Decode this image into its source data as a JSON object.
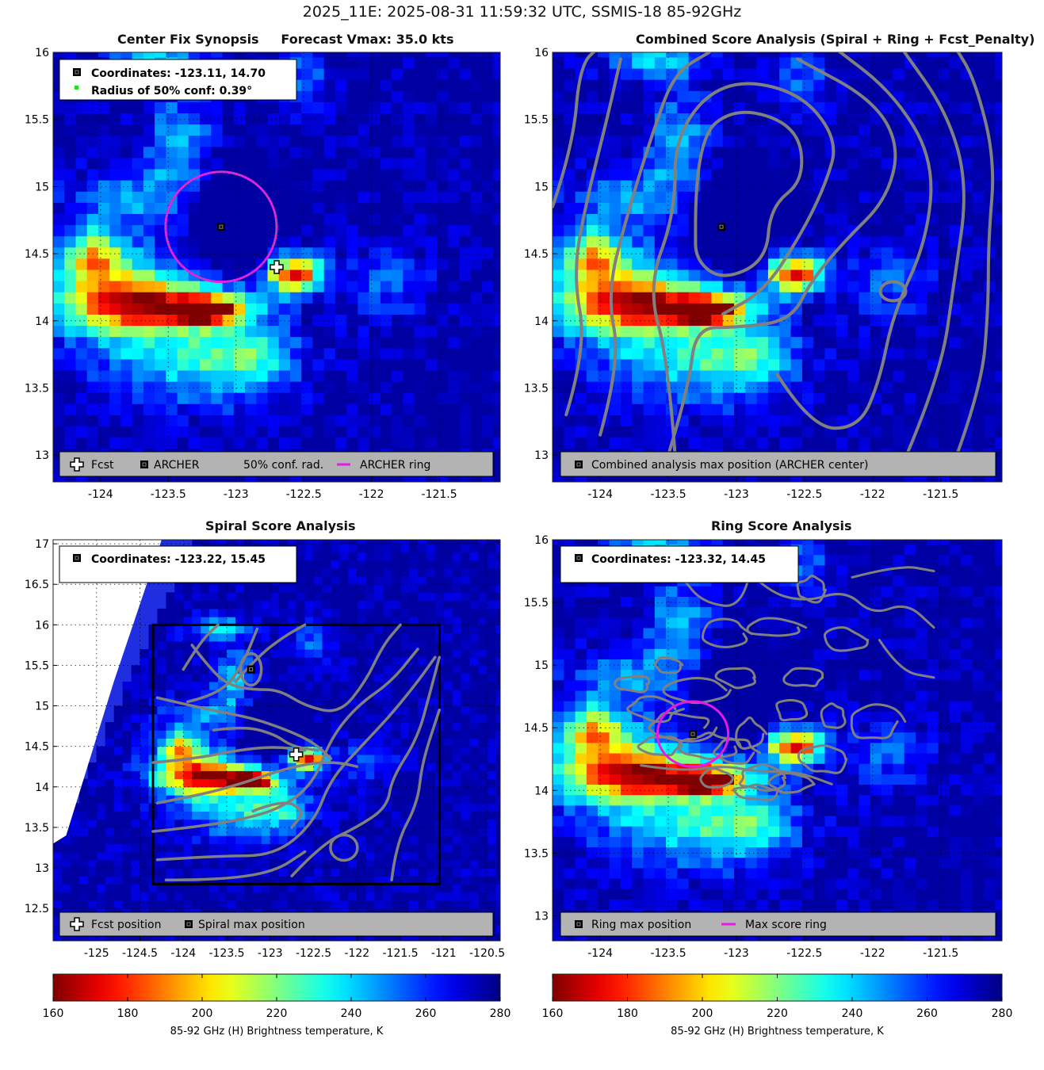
{
  "figure_title": "2025_11E: 2025-08-31 11:59:32 UTC, SSMIS-18 85-92GHz",
  "colors": {
    "fcst_marker": "#ffffff",
    "archer_marker": "#000000",
    "ring": "#e619e6",
    "contour": "#808080",
    "legend_bg": "#b3b3b3",
    "conf_marker": "#22dd22"
  },
  "colorbar": {
    "label": "85-92 GHz (H) Brightness temperature, K",
    "ticks": [
      "160",
      "180",
      "200",
      "220",
      "240",
      "260",
      "280"
    ],
    "range": [
      160,
      280
    ],
    "colormap": "jet_reversed"
  },
  "chart_data": [
    {
      "type": "heatmap",
      "panel": "center-fix-synopsis",
      "title": "Center Fix Synopsis     Forecast Vmax: 35.0 kts",
      "xlim": [
        -124.35,
        -121.05
      ],
      "ylim": [
        12.8,
        16.0
      ],
      "xticks": [
        "-124",
        "-123.5",
        "-123",
        "-122.5",
        "-122",
        "-121.5"
      ],
      "yticks": [
        "16",
        "15.5",
        "15",
        "14.5",
        "14",
        "13.5",
        "13"
      ],
      "info_lines": [
        "Coordinates: -123.11, 14.70",
        "Radius of 50% conf: 0.39°"
      ],
      "legend": [
        "Fcst",
        "ARCHER",
        "50% conf. rad.",
        "ARCHER ring"
      ],
      "archer_center": [
        -123.11,
        14.7
      ],
      "fcst_position": [
        -122.7,
        14.4
      ],
      "ring_center": [
        -123.11,
        14.7
      ],
      "ring_radius_deg": 0.41,
      "cold_features": [
        {
          "x": -122.57,
          "y": 14.35,
          "tb": 165
        },
        {
          "x": -123.2,
          "y": 14.08,
          "tb": 172
        },
        {
          "x": -124.05,
          "y": 14.47,
          "tb": 190
        },
        {
          "x": -123.7,
          "y": 14.12,
          "tb": 195
        }
      ]
    },
    {
      "type": "heatmap",
      "panel": "combined-score-analysis",
      "title": "Combined Score Analysis (Spiral + Ring + Fcst_Penalty)",
      "xlim": [
        -124.35,
        -121.05
      ],
      "ylim": [
        12.8,
        16.0
      ],
      "xticks": [
        "-124",
        "-123.5",
        "-123",
        "-122.5",
        "-122",
        "-121.5"
      ],
      "yticks": [
        "16",
        "15.5",
        "15",
        "14.5",
        "14",
        "13.5",
        "13"
      ],
      "legend": [
        "Combined analysis max position (ARCHER center)"
      ],
      "archer_center": [
        -123.11,
        14.7
      ]
    },
    {
      "type": "heatmap",
      "panel": "spiral-score-analysis",
      "title": "Spiral Score Analysis",
      "xlim": [
        -125.5,
        -120.35
      ],
      "ylim": [
        12.1,
        17.05
      ],
      "xticks": [
        "-125",
        "-124.5",
        "-124",
        "-123.5",
        "-123",
        "-122.5",
        "-122",
        "-121.5",
        "-121",
        "-120.5"
      ],
      "yticks": [
        "17",
        "16.5",
        "16",
        "15.5",
        "15",
        "14.5",
        "14",
        "13.5",
        "13",
        "12.5"
      ],
      "info_lines": [
        "Coordinates: -123.22, 15.45"
      ],
      "legend": [
        "Fcst position",
        "Spiral max position"
      ],
      "spiral_max": [
        -123.22,
        15.45
      ],
      "fcst_position": [
        -122.7,
        14.4
      ],
      "search_box": {
        "x": [
          -124.35,
          -121.05
        ],
        "y": [
          12.8,
          16.0
        ]
      }
    },
    {
      "type": "heatmap",
      "panel": "ring-score-analysis",
      "title": "Ring Score Analysis",
      "xlim": [
        -124.35,
        -121.05
      ],
      "ylim": [
        12.8,
        16.0
      ],
      "xticks": [
        "-124",
        "-123.5",
        "-123",
        "-122.5",
        "-122",
        "-121.5"
      ],
      "yticks": [
        "16",
        "15.5",
        "15",
        "14.5",
        "14",
        "13.5",
        "13"
      ],
      "info_lines": [
        "Coordinates: -123.32, 14.45"
      ],
      "legend": [
        "Ring max position",
        "Max score ring"
      ],
      "ring_max": [
        -123.32,
        14.45
      ],
      "ring_radius_deg": 0.26
    }
  ]
}
